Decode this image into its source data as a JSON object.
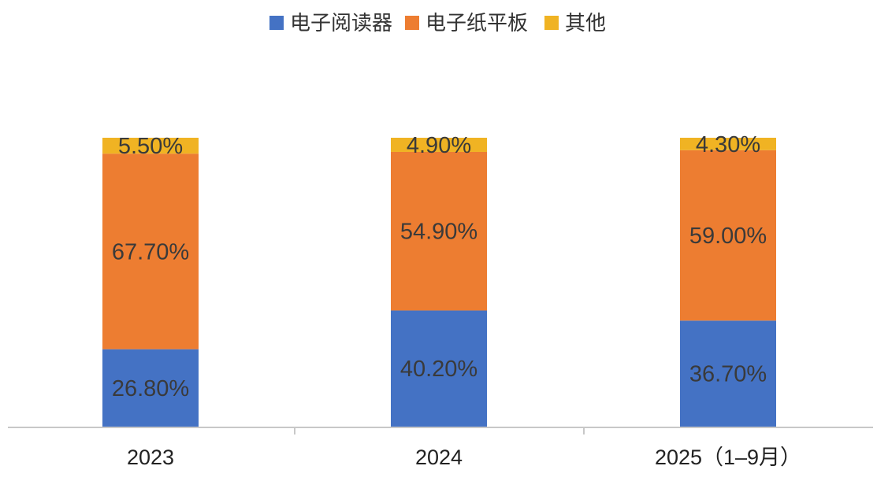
{
  "chart_data": {
    "type": "bar",
    "stacked": true,
    "percent": true,
    "categories": [
      "2023",
      "2024",
      "2025（1–9月）"
    ],
    "series": [
      {
        "name": "电子阅读器",
        "color": "#4472c4",
        "values": [
          26.8,
          40.2,
          36.7
        ],
        "labels": [
          "26.80%",
          "40.20%",
          "36.70%"
        ]
      },
      {
        "name": "电子纸平板",
        "color": "#ed7d31",
        "values": [
          67.7,
          54.9,
          59.0
        ],
        "labels": [
          "67.70%",
          "54.90%",
          "59.00%"
        ]
      },
      {
        "name": "其他",
        "color": "#f0b323",
        "values": [
          5.5,
          4.9,
          4.3
        ],
        "labels": [
          "5.50%",
          "4.90%",
          "4.30%"
        ]
      }
    ],
    "legend_position": "top-center",
    "grid": false,
    "ylim": [
      0,
      100
    ]
  }
}
